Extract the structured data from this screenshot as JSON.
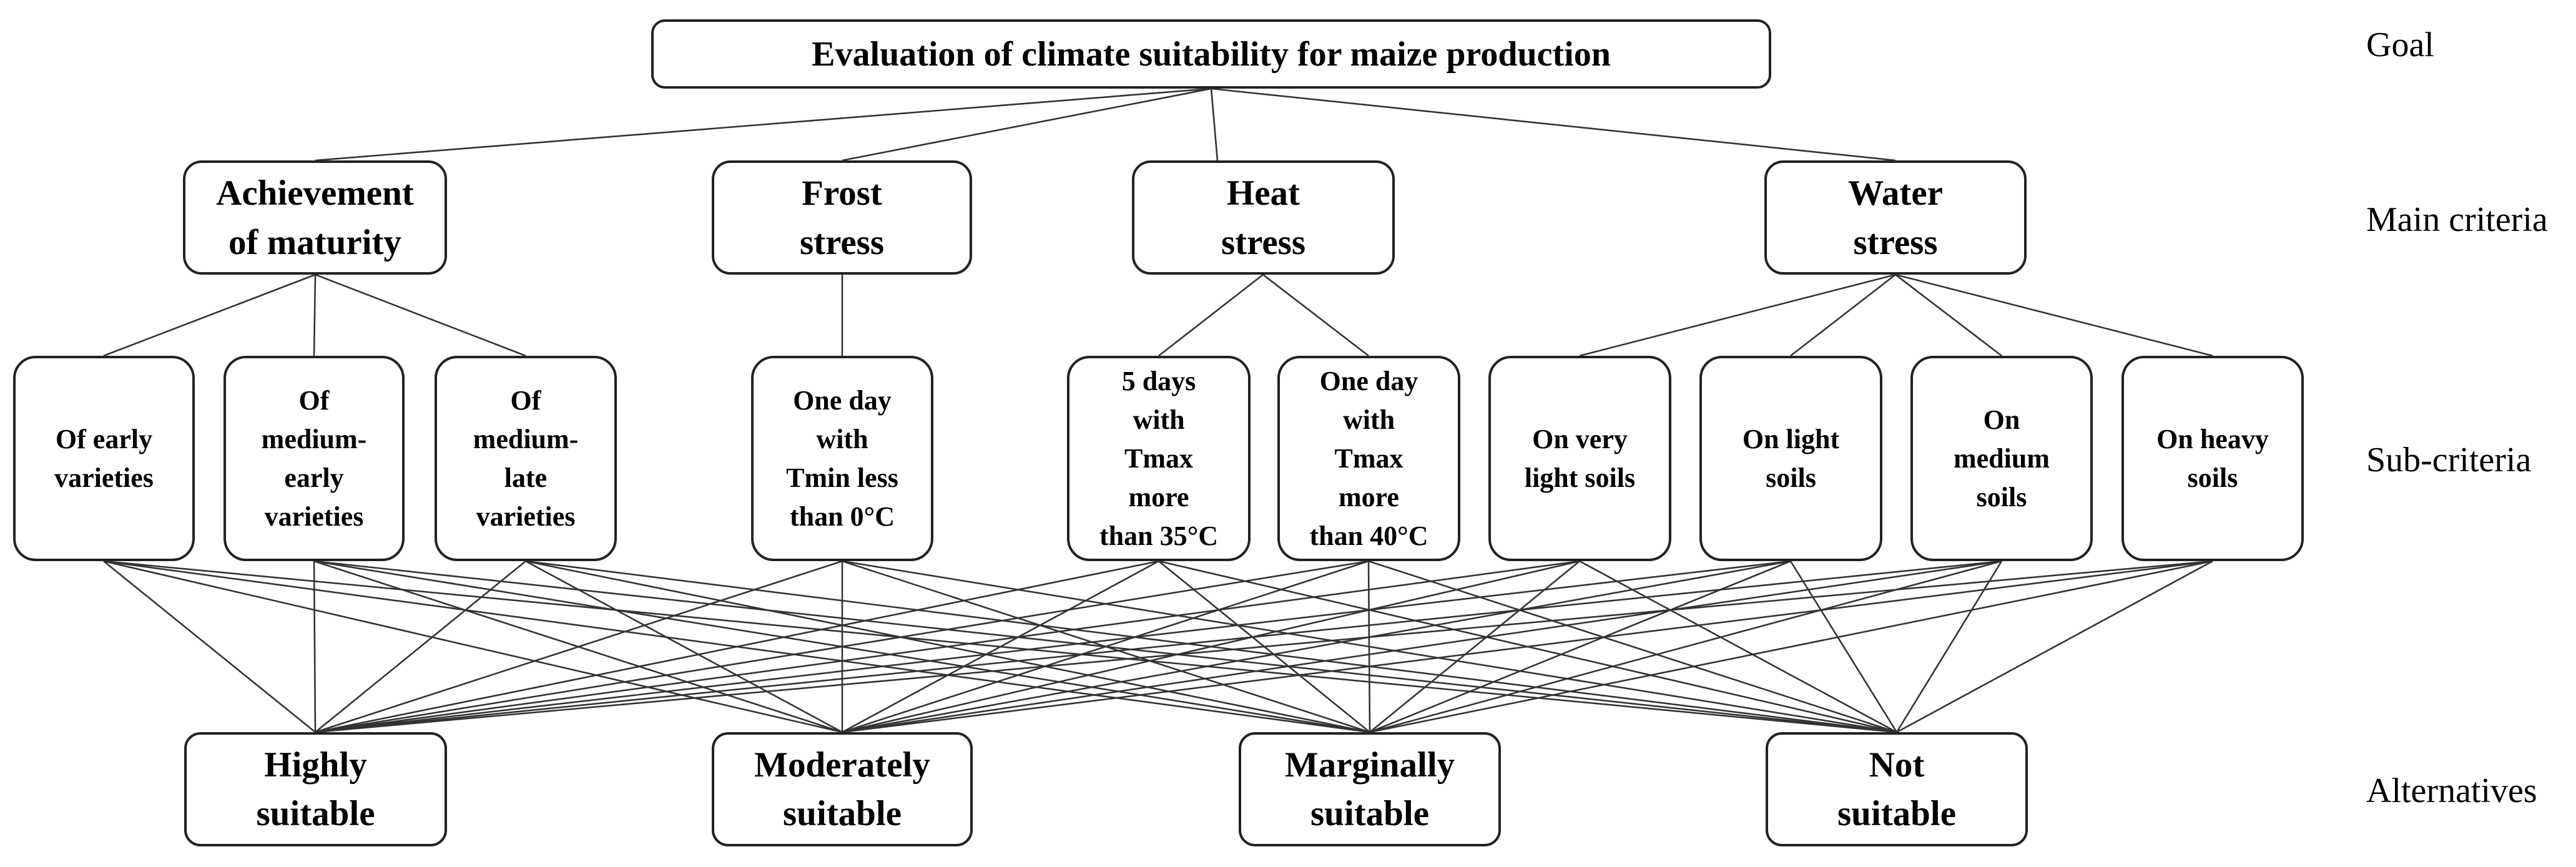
{
  "levels": {
    "goal": "Goal",
    "main_criteria": "Main criteria",
    "sub_criteria": "Sub-criteria",
    "alternatives": "Alternatives"
  },
  "goal": "Evaluation of climate suitability for maize production",
  "main_criteria": [
    "Achievement\nof maturity",
    "Frost\nstress",
    "Heat\nstress",
    "Water\nstress"
  ],
  "sub_criteria": [
    "Of early\nvarieties",
    "Of\nmedium-\nearly\nvarieties",
    "Of\nmedium-\nlate\nvarieties",
    "One day\nwith\nTmin less\nthan 0°C",
    "5 days\nwith\nTmax\nmore\nthan 35°C",
    "One day\nwith\nTmax\nmore\nthan 40°C",
    "On very\nlight soils",
    "On light\nsoils",
    "On\nmedium\nsoils",
    "On heavy\nsoils"
  ],
  "alternatives": [
    "Highly\nsuitable",
    "Moderately\nsuitable",
    "Marginally\nsuitable",
    "Not\nsuitable"
  ]
}
